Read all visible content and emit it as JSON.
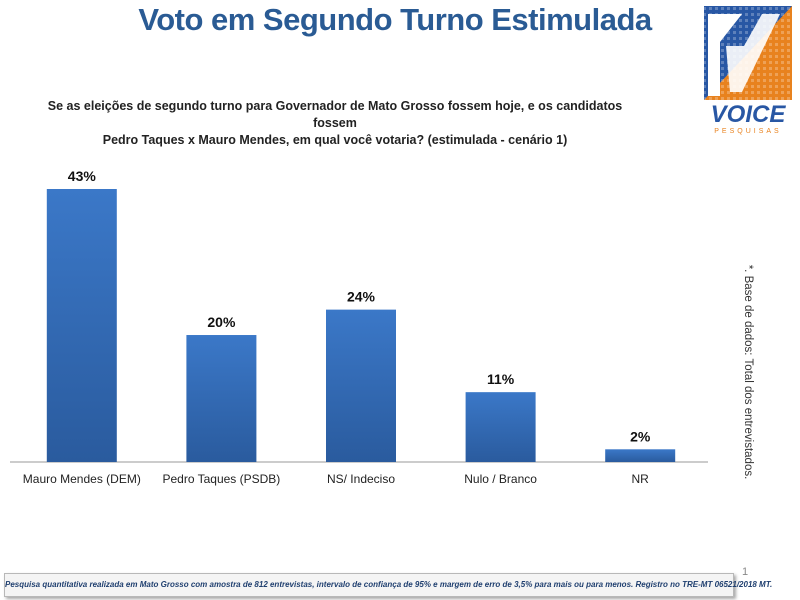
{
  "title": "Voto em Segundo Turno Estimulada",
  "question_line1": "Se as eleições de segundo turno para Governador de Mato Grosso fossem hoje, e os candidatos fossem",
  "question_line2": "Pedro Taques x Mauro Mendes, em qual você votaria? (estimulada - cenário 1)",
  "logo": {
    "brand": "VOICE",
    "sub": "PESQUISAS",
    "colors": {
      "blue": "#2857a4",
      "orange": "#e8821e"
    }
  },
  "side_note": "*. Base de dados: Total dos  entrevistados.",
  "page_number": "1",
  "footer": "Pesquisa quantitativa realizada em Mato Grosso com  amostra de 812 entrevistas, intervalo de confiança de 95% e margem de erro de 3,5% para mais ou para menos. Registro no TRE-MT  06521/2018 MT.",
  "colors": {
    "title": "#2a5b94",
    "bar_top": "#3b78c8",
    "bar_bottom": "#2a5b9e",
    "axis": "#999999"
  },
  "chart_data": {
    "type": "bar",
    "categories": [
      "Mauro Mendes (DEM)",
      "Pedro Taques (PSDB)",
      "NS/ Indeciso",
      "Nulo / Branco",
      "NR"
    ],
    "values": [
      43,
      20,
      24,
      11,
      2
    ],
    "value_labels": [
      "43%",
      "20%",
      "24%",
      "11%",
      "2%"
    ],
    "ylim": [
      0,
      43
    ],
    "grid": false,
    "legend": "none"
  }
}
